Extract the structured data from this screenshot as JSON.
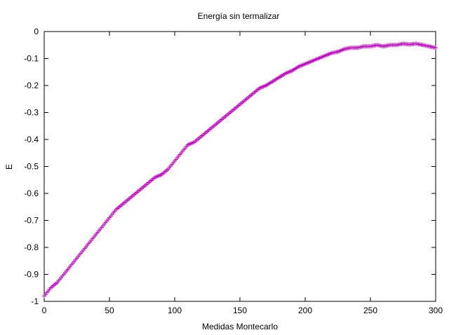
{
  "chart_data": {
    "type": "scatter",
    "title": "Energía sin termalizar",
    "xlabel": "Medidas Montecarlo",
    "ylabel": "E",
    "xlim": [
      0,
      300
    ],
    "ylim": [
      -1,
      0
    ],
    "x_ticks": [
      "0",
      "50",
      "100",
      "150",
      "200",
      "250",
      "300"
    ],
    "y_ticks": [
      "0",
      "-0.1",
      "-0.2",
      "-0.3",
      "-0.4",
      "-0.5",
      "-0.6",
      "-0.7",
      "-0.8",
      "-0.9",
      "-1"
    ],
    "grid": false,
    "marker": "+",
    "series_color": "#c000c0",
    "series": [
      {
        "x": [
          0,
          5,
          10,
          15,
          20,
          25,
          30,
          35,
          40,
          45,
          50,
          55,
          60,
          65,
          70,
          75,
          80,
          85,
          90,
          95,
          100,
          105,
          110,
          115,
          120,
          125,
          130,
          135,
          140,
          145,
          150,
          155,
          160,
          165,
          170,
          175,
          180,
          185,
          190,
          195,
          200,
          205,
          210,
          215,
          220,
          225,
          230,
          235,
          240,
          245,
          250,
          255,
          260,
          265,
          270,
          275,
          280,
          285,
          290,
          295,
          300
        ],
        "values": [
          -0.98,
          -0.95,
          -0.93,
          -0.9,
          -0.87,
          -0.84,
          -0.81,
          -0.78,
          -0.75,
          -0.72,
          -0.69,
          -0.66,
          -0.64,
          -0.62,
          -0.6,
          -0.58,
          -0.56,
          -0.54,
          -0.53,
          -0.51,
          -0.48,
          -0.45,
          -0.42,
          -0.41,
          -0.39,
          -0.37,
          -0.35,
          -0.33,
          -0.31,
          -0.29,
          -0.27,
          -0.25,
          -0.23,
          -0.21,
          -0.2,
          -0.185,
          -0.17,
          -0.155,
          -0.145,
          -0.13,
          -0.12,
          -0.11,
          -0.1,
          -0.09,
          -0.08,
          -0.075,
          -0.065,
          -0.06,
          -0.06,
          -0.055,
          -0.055,
          -0.05,
          -0.055,
          -0.05,
          -0.05,
          -0.045,
          -0.048,
          -0.045,
          -0.05,
          -0.055,
          -0.06
        ]
      }
    ]
  }
}
